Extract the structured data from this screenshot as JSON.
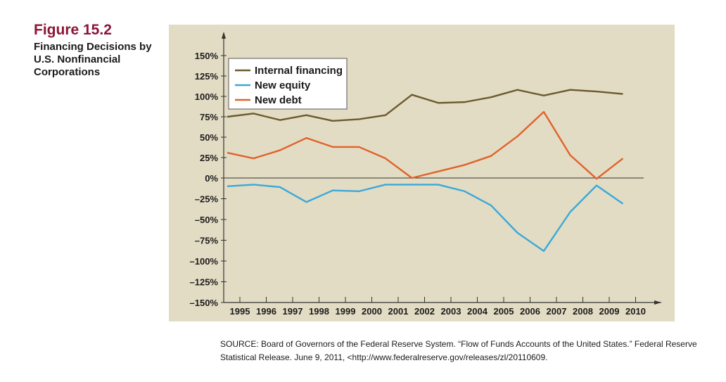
{
  "figure": {
    "number": "Figure 15.2",
    "title": "Financing Decisions by U.S. Nonfinancial Corporations"
  },
  "source": "SOURCE: Board of Governors of the Federal Reserve System. “Flow of Funds Accounts of the United States.” Federal Reserve Statistical Release. June 9, 2011, <http://www.federalreserve.gov/releases/zl/20110609.",
  "colors": {
    "panel_bg": "#e3dcc4",
    "axis": "#333333",
    "internal": "#6b5a2e",
    "equity": "#3aa9d8",
    "debt": "#e0622c",
    "figure_number": "#8b1538"
  },
  "chart_data": {
    "type": "line",
    "title": "Financing Decisions by U.S. Nonfinancial Corporations",
    "xlabel": "",
    "ylabel": "",
    "x": [
      1995,
      1996,
      1997,
      1998,
      1999,
      2000,
      2001,
      2002,
      2003,
      2004,
      2005,
      2006,
      2007,
      2008,
      2009,
      2010
    ],
    "ylim": [
      -150,
      150
    ],
    "yticks": [
      150,
      125,
      100,
      75,
      50,
      25,
      0,
      -25,
      -50,
      -75,
      -100,
      -125,
      -150
    ],
    "ytick_labels": [
      "150%",
      "125%",
      "100%",
      "75%",
      "50%",
      "25%",
      "0%",
      "–25%",
      "–50%",
      "–75%",
      "–100%",
      "–125%",
      "–150%"
    ],
    "legend_position": "top-left",
    "series": [
      {
        "name": "Internal financing",
        "color": "#6b5a2e",
        "values": [
          75,
          79,
          71,
          77,
          70,
          72,
          77,
          102,
          92,
          93,
          99,
          108,
          101,
          108,
          106,
          103
        ]
      },
      {
        "name": "New equity",
        "color": "#3aa9d8",
        "values": [
          -10,
          -8,
          -11,
          -29,
          -15,
          -16,
          -8,
          -8,
          -8,
          -16,
          -33,
          -66,
          -88,
          -41,
          -9,
          -31
        ]
      },
      {
        "name": "New debt",
        "color": "#e0622c",
        "values": [
          31,
          24,
          34,
          49,
          38,
          38,
          24,
          0,
          8,
          16,
          27,
          51,
          81,
          28,
          -1,
          24
        ]
      }
    ]
  }
}
